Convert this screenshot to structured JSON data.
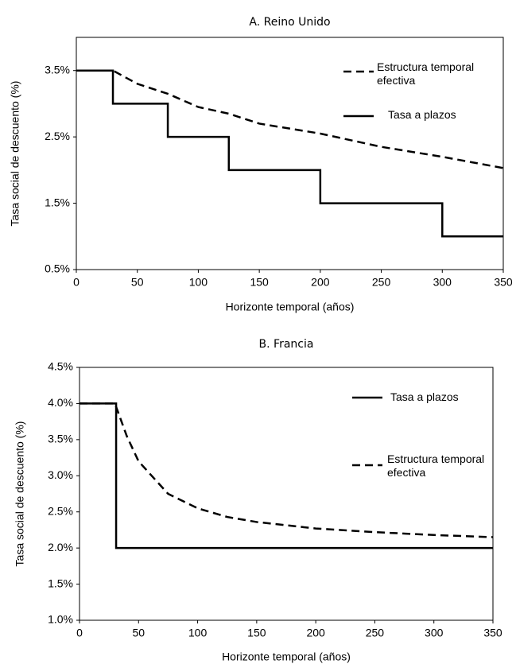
{
  "chart_data": [
    {
      "type": "line",
      "title": "A. Reino Unido",
      "x_label": "Horizonte temporal (años)",
      "y_label": "Tasa social de descuento (%)",
      "xlim": [
        0,
        350
      ],
      "xticks": [
        0,
        50,
        100,
        150,
        200,
        250,
        300,
        350
      ],
      "ylim": [
        0.5,
        4.0
      ],
      "yticks": [
        {
          "value": 0.5,
          "label": "0.5%"
        },
        {
          "value": 1.5,
          "label": "1.5%"
        },
        {
          "value": 2.5,
          "label": "2.5%"
        },
        {
          "value": 3.5,
          "label": "3.5%"
        }
      ],
      "series": [
        {
          "name": "Estructura temporal efectiva",
          "color": "#000000",
          "style": "dashed",
          "x": [
            0,
            30,
            50,
            75,
            100,
            125,
            150,
            200,
            250,
            300,
            350
          ],
          "values": [
            3.5,
            3.5,
            3.3,
            3.15,
            2.95,
            2.85,
            2.7,
            2.55,
            2.35,
            2.2,
            2.03
          ]
        },
        {
          "name": "Tasa a plazos",
          "color": "#000000",
          "style": "solid",
          "x": [
            0,
            30,
            30,
            75,
            75,
            125,
            125,
            200,
            200,
            300,
            300,
            350
          ],
          "values": [
            3.5,
            3.5,
            3.0,
            3.0,
            2.5,
            2.5,
            2.0,
            2.0,
            1.5,
            1.5,
            1.0,
            1.0
          ]
        }
      ]
    },
    {
      "type": "line",
      "title": "B. Francia",
      "x_label": "Horizonte temporal (años)",
      "y_label": "Tasa social de descuento (%)",
      "xlim": [
        0,
        350
      ],
      "xticks": [
        0,
        50,
        100,
        150,
        200,
        250,
        300,
        350
      ],
      "ylim": [
        1.0,
        4.5
      ],
      "yticks": [
        {
          "value": 1.0,
          "label": "1.0%"
        },
        {
          "value": 1.5,
          "label": "1.5%"
        },
        {
          "value": 2.0,
          "label": "2.0%"
        },
        {
          "value": 2.5,
          "label": "2.5%"
        },
        {
          "value": 3.0,
          "label": "3.0%"
        },
        {
          "value": 3.5,
          "label": "3.5%"
        },
        {
          "value": 4.0,
          "label": "4.0%"
        },
        {
          "value": 4.5,
          "label": "4.5%"
        }
      ],
      "series": [
        {
          "name": "Tasa a plazos",
          "color": "#000000",
          "style": "solid",
          "x": [
            0,
            31,
            31,
            350
          ],
          "values": [
            4.0,
            4.0,
            2.0,
            2.0
          ]
        },
        {
          "name": "Estructura temporal efectiva",
          "color": "#000000",
          "style": "dashed",
          "x": [
            0,
            30,
            40,
            50,
            75,
            100,
            125,
            150,
            200,
            250,
            300,
            350
          ],
          "values": [
            4.0,
            4.0,
            3.55,
            3.2,
            2.75,
            2.55,
            2.43,
            2.36,
            2.27,
            2.22,
            2.18,
            2.15
          ]
        }
      ]
    }
  ]
}
